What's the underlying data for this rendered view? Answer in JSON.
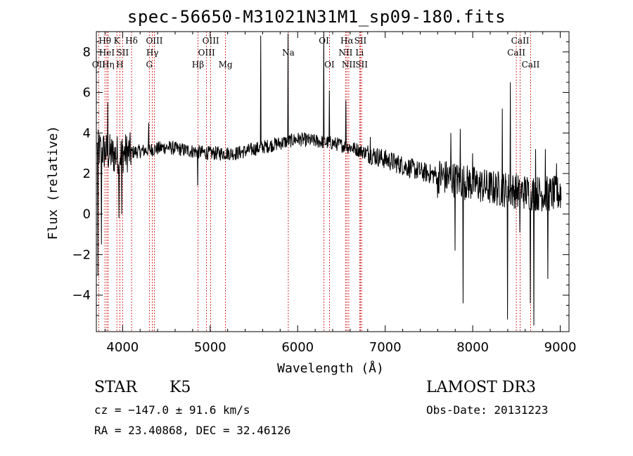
{
  "chart_data": {
    "type": "line",
    "title": "spec-56650-M31021N31M1_sp09-180.fits",
    "xlabel": "Wavelength (Å)",
    "ylabel": "Flux (relative)",
    "xlim": [
      3700,
      9100
    ],
    "ylim": [
      -5.8,
      9.0
    ],
    "xticks": [
      "4000",
      "5000",
      "6000",
      "7000",
      "8000",
      "9000"
    ],
    "yticks": [
      "−4",
      "−2",
      "0",
      "2",
      "4",
      "6",
      "8"
    ],
    "xtick_values": [
      4000,
      5000,
      6000,
      7000,
      8000,
      9000
    ],
    "ytick_values": [
      -4,
      -2,
      0,
      2,
      4,
      6,
      8
    ],
    "line_color": "#000000",
    "marker_color": "#cc0000",
    "continuum_points": [
      [
        3700,
        3.2
      ],
      [
        3800,
        3.1
      ],
      [
        3900,
        2.9
      ],
      [
        4000,
        3.0
      ],
      [
        4200,
        3.1
      ],
      [
        4500,
        3.3
      ],
      [
        4800,
        3.1
      ],
      [
        5000,
        3.0
      ],
      [
        5300,
        3.0
      ],
      [
        5600,
        3.3
      ],
      [
        5800,
        3.5
      ],
      [
        6000,
        3.7
      ],
      [
        6200,
        3.6
      ],
      [
        6400,
        3.5
      ],
      [
        6600,
        3.3
      ],
      [
        6800,
        3.0
      ],
      [
        7000,
        2.7
      ],
      [
        7200,
        2.4
      ],
      [
        7400,
        2.1
      ],
      [
        7600,
        1.9
      ],
      [
        7800,
        1.7
      ],
      [
        8000,
        1.5
      ],
      [
        8200,
        1.3
      ],
      [
        8400,
        1.2
      ],
      [
        8600,
        1.1
      ],
      [
        8800,
        1.0
      ],
      [
        9000,
        1.0
      ]
    ],
    "spikes": [
      [
        3720,
        -3.0
      ],
      [
        3760,
        -1.5
      ],
      [
        3830,
        5.5
      ],
      [
        3960,
        -0.2
      ],
      [
        3990,
        0.0
      ],
      [
        4300,
        4.5
      ],
      [
        4860,
        1.4
      ],
      [
        5577,
        8.8
      ],
      [
        5890,
        8.9
      ],
      [
        6300,
        9.0
      ],
      [
        6363,
        6.1
      ],
      [
        6550,
        5.6
      ],
      [
        6830,
        3.8
      ],
      [
        7240,
        2.5
      ],
      [
        7600,
        0.8
      ],
      [
        7750,
        4.0
      ],
      [
        7800,
        -1.8
      ],
      [
        7860,
        4.2
      ],
      [
        7890,
        -4.4
      ],
      [
        8000,
        3.0
      ],
      [
        8340,
        5.2
      ],
      [
        8400,
        -5.2
      ],
      [
        8430,
        6.5
      ],
      [
        8540,
        -0.9
      ],
      [
        8660,
        -4.4
      ],
      [
        8700,
        -5.5
      ],
      [
        8720,
        3.2
      ],
      [
        8830,
        3.2
      ],
      [
        8860,
        -3.2
      ],
      [
        8960,
        2.5
      ],
      [
        9000,
        1.5
      ]
    ],
    "lines": [
      {
        "name": "OII",
        "wavelength": 3727,
        "row": 3
      },
      {
        "name": "Hθ",
        "wavelength": 3798,
        "row": 1
      },
      {
        "name": "HeI",
        "wavelength": 3820,
        "row": 2
      },
      {
        "name": "Hη",
        "wavelength": 3835,
        "row": 3
      },
      {
        "name": "K",
        "wavelength": 3934,
        "row": 1
      },
      {
        "name": "SII",
        "wavelength": 4000,
        "row": 2
      },
      {
        "name": "H",
        "wavelength": 3968,
        "row": 3
      },
      {
        "name": "Hδ",
        "wavelength": 4102,
        "row": 1
      },
      {
        "name": "OIII",
        "wavelength": 4363,
        "row": 1
      },
      {
        "name": "Hγ",
        "wavelength": 4340,
        "row": 2
      },
      {
        "name": "G",
        "wavelength": 4305,
        "row": 3
      },
      {
        "name": "OIII",
        "wavelength": 5007,
        "row": 1
      },
      {
        "name": "OIII",
        "wavelength": 4959,
        "row": 2
      },
      {
        "name": "Hβ",
        "wavelength": 4861,
        "row": 3
      },
      {
        "name": "Mg",
        "wavelength": 5175,
        "row": 3
      },
      {
        "name": "Na",
        "wavelength": 5893,
        "row": 2
      },
      {
        "name": "OI",
        "wavelength": 6300,
        "row": 1
      },
      {
        "name": "OI",
        "wavelength": 6363,
        "row": 3
      },
      {
        "name": "Hα",
        "wavelength": 6563,
        "row": 1
      },
      {
        "name": "NII",
        "wavelength": 6548,
        "row": 2
      },
      {
        "name": "NII",
        "wavelength": 6584,
        "row": 3
      },
      {
        "name": "SII",
        "wavelength": 6717,
        "row": 1
      },
      {
        "name": "Li",
        "wavelength": 6708,
        "row": 2
      },
      {
        "name": "SII",
        "wavelength": 6731,
        "row": 3
      },
      {
        "name": "CaII",
        "wavelength": 8542,
        "row": 1
      },
      {
        "name": "CaII",
        "wavelength": 8498,
        "row": 2
      },
      {
        "name": "CaII",
        "wavelength": 8662,
        "row": 3
      }
    ]
  },
  "info": {
    "class": "STAR",
    "subclass": "K5",
    "survey": "LAMOST DR3",
    "cz": "cz = −147.0 ± 91.6 km/s",
    "obs_date": "Obs-Date: 20131223",
    "coords": "RA =  23.40868, DEC =  32.46126"
  }
}
